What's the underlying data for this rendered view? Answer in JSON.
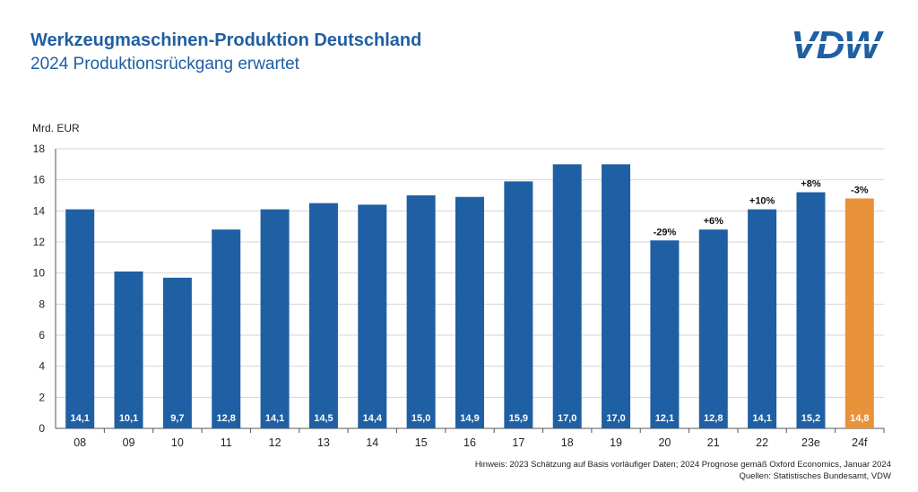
{
  "header": {
    "title": "Werkzeugmaschinen-Produktion Deutschland",
    "subtitle": "2024 Produktionsrückgang erwartet",
    "logo_text": "VDW"
  },
  "footer": {
    "note": "Hinweis: 2023 Schätzung auf Basis vorläufiger Daten; 2024 Prognose gemäß Oxford Economics, Januar 2024",
    "sources": "Quellen: Statistisches Bundesamt, VDW"
  },
  "colors": {
    "bar": "#1f5fa3",
    "forecast": "#e8923a",
    "title": "#1f5fa3"
  },
  "chart_data": {
    "type": "bar",
    "title": "Werkzeugmaschinen-Produktion Deutschland",
    "subtitle": "2024 Produktionsrückgang erwartet",
    "ylabel": "Mrd. EUR",
    "ylim": [
      0,
      18
    ],
    "yticks": [
      0,
      2,
      4,
      6,
      8,
      10,
      12,
      14,
      16,
      18
    ],
    "grid": "horizontal",
    "categories": [
      "08",
      "09",
      "10",
      "11",
      "12",
      "13",
      "14",
      "15",
      "16",
      "17",
      "18",
      "19",
      "20",
      "21",
      "22",
      "23e",
      "24f"
    ],
    "values": [
      14.1,
      10.1,
      9.7,
      12.8,
      14.1,
      14.5,
      14.4,
      15.0,
      14.9,
      15.9,
      17.0,
      17.0,
      12.1,
      12.8,
      14.1,
      15.2,
      14.8
    ],
    "value_labels": [
      "14,1",
      "10,1",
      "9,7",
      "12,8",
      "14,1",
      "14,5",
      "14,4",
      "15,0",
      "14,9",
      "15,9",
      "17,0",
      "17,0",
      "12,1",
      "12,8",
      "14,1",
      "15,2",
      "14,8"
    ],
    "change_labels": [
      "",
      "",
      "",
      "",
      "",
      "",
      "",
      "",
      "",
      "",
      "",
      "",
      "-29%",
      "+6%",
      "+10%",
      "+8%",
      "-3%"
    ],
    "highlight": [
      "",
      "",
      "",
      "",
      "",
      "",
      "",
      "",
      "",
      "",
      "",
      "",
      "",
      "",
      "",
      "",
      "forecast"
    ]
  }
}
